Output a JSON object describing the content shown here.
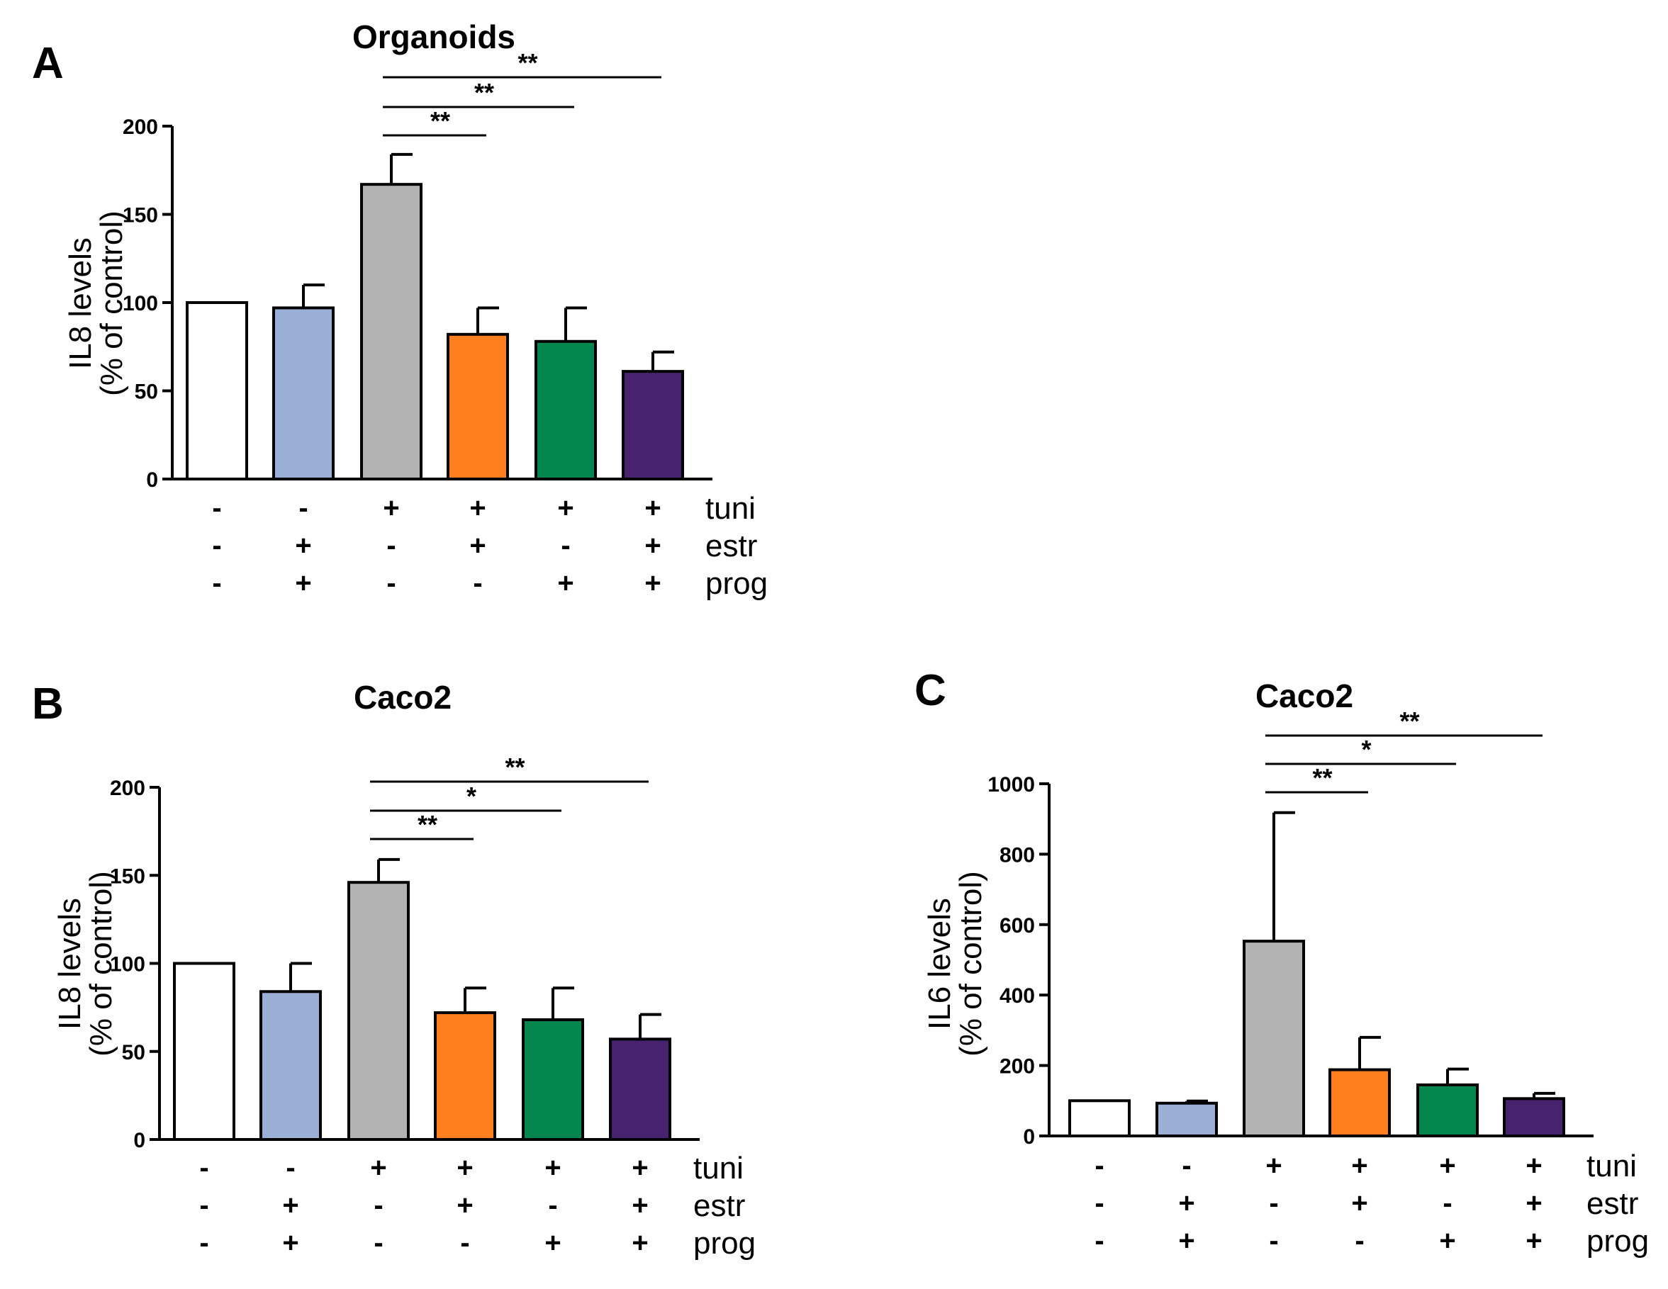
{
  "chart_data": [
    {
      "panel": "A",
      "type": "bar",
      "title": "Organoids",
      "ylabel_lines": [
        "IL8 levels",
        "(% of control)"
      ],
      "ylim": [
        0,
        200
      ],
      "yticks": [
        "0",
        "50",
        "100",
        "150",
        "200"
      ],
      "values": [
        100,
        97,
        167,
        82,
        78,
        61
      ],
      "errors": [
        0,
        13,
        17,
        15,
        19,
        11
      ],
      "colors": [
        "#ffffff",
        "#9aaed6",
        "#b3b3b3",
        "#ff7f1e",
        "#03874e",
        "#47226e"
      ],
      "factors": [
        {
          "name": "tuni",
          "signs": [
            "-",
            "-",
            "+",
            "+",
            "+",
            "+"
          ]
        },
        {
          "name": "estr",
          "signs": [
            "-",
            "+",
            "-",
            "+",
            "-",
            "+"
          ]
        },
        {
          "name": "prog",
          "signs": [
            "-",
            "+",
            "-",
            "-",
            "+",
            "+"
          ]
        }
      ],
      "significance": [
        {
          "from": 2,
          "to": 3,
          "label": "**"
        },
        {
          "from": 2,
          "to": 4,
          "label": "**"
        },
        {
          "from": 2,
          "to": 5,
          "label": "**"
        }
      ]
    },
    {
      "panel": "B",
      "type": "bar",
      "title": "Caco2",
      "ylabel_lines": [
        "IL8 levels",
        "(% of control)"
      ],
      "ylim": [
        0,
        200
      ],
      "yticks": [
        "0",
        "50",
        "100",
        "150",
        "200"
      ],
      "values": [
        100,
        84,
        146,
        72,
        68,
        57
      ],
      "errors": [
        0,
        16,
        13,
        14,
        18,
        14
      ],
      "colors": [
        "#ffffff",
        "#9aaed6",
        "#b3b3b3",
        "#ff7f1e",
        "#03874e",
        "#47226e"
      ],
      "factors": [
        {
          "name": "tuni",
          "signs": [
            "-",
            "-",
            "+",
            "+",
            "+",
            "+"
          ]
        },
        {
          "name": "estr",
          "signs": [
            "-",
            "+",
            "-",
            "+",
            "-",
            "+"
          ]
        },
        {
          "name": "prog",
          "signs": [
            "-",
            "+",
            "-",
            "-",
            "+",
            "+"
          ]
        }
      ],
      "significance": [
        {
          "from": 2,
          "to": 3,
          "label": "**"
        },
        {
          "from": 2,
          "to": 4,
          "label": "*"
        },
        {
          "from": 2,
          "to": 5,
          "label": "**"
        }
      ]
    },
    {
      "panel": "C",
      "type": "bar",
      "title": "Caco2",
      "ylabel_lines": [
        "IL6 levels",
        "(% of control)"
      ],
      "ylim": [
        0,
        1000
      ],
      "yticks": [
        "0",
        "200",
        "400",
        "600",
        "800",
        "1000"
      ],
      "values": [
        100,
        93,
        553,
        188,
        145,
        106
      ],
      "errors": [
        0,
        6,
        365,
        92,
        45,
        15
      ],
      "colors": [
        "#ffffff",
        "#9aaed6",
        "#b3b3b3",
        "#ff7f1e",
        "#03874e",
        "#47226e"
      ],
      "factors": [
        {
          "name": "tuni",
          "signs": [
            "-",
            "-",
            "+",
            "+",
            "+",
            "+"
          ]
        },
        {
          "name": "estr",
          "signs": [
            "-",
            "+",
            "-",
            "+",
            "-",
            "+"
          ]
        },
        {
          "name": "prog",
          "signs": [
            "-",
            "+",
            "-",
            "-",
            "+",
            "+"
          ]
        }
      ],
      "significance": [
        {
          "from": 2,
          "to": 3,
          "label": "**"
        },
        {
          "from": 2,
          "to": 4,
          "label": "*"
        },
        {
          "from": 2,
          "to": 5,
          "label": "**"
        }
      ]
    }
  ]
}
